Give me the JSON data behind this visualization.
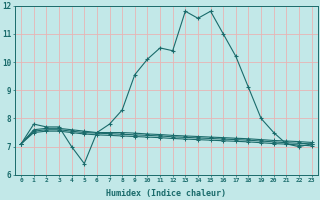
{
  "xlabel": "Humidex (Indice chaleur)",
  "bg_color": "#c2e8e8",
  "grid_color": "#e8b4b4",
  "line_color": "#1a6b6b",
  "xlim": [
    -0.5,
    23.5
  ],
  "ylim": [
    6,
    12
  ],
  "yticks": [
    6,
    7,
    8,
    9,
    10,
    11,
    12
  ],
  "xticks": [
    0,
    1,
    2,
    3,
    4,
    5,
    6,
    7,
    8,
    9,
    10,
    11,
    12,
    13,
    14,
    15,
    16,
    17,
    18,
    19,
    20,
    21,
    22,
    23
  ],
  "line1_x": [
    0,
    1,
    2,
    3,
    4,
    5,
    6,
    7,
    8,
    9,
    10,
    11,
    12,
    13,
    14,
    15,
    16,
    17,
    18,
    19,
    20,
    21,
    22,
    23
  ],
  "line1_y": [
    7.1,
    7.8,
    7.7,
    7.7,
    7.0,
    6.4,
    7.5,
    7.8,
    8.3,
    9.55,
    10.1,
    10.5,
    10.4,
    11.8,
    11.55,
    11.8,
    11.0,
    10.2,
    9.1,
    8.0,
    7.5,
    7.1,
    7.0,
    7.1
  ],
  "line2_x": [
    0,
    1,
    2,
    3,
    4,
    5,
    6,
    7,
    8,
    9,
    10,
    11,
    12,
    13,
    14,
    15,
    16,
    17,
    18,
    19,
    20,
    21,
    22,
    23
  ],
  "line2_y": [
    7.1,
    7.6,
    7.65,
    7.65,
    7.6,
    7.55,
    7.5,
    7.5,
    7.5,
    7.48,
    7.45,
    7.43,
    7.4,
    7.38,
    7.36,
    7.34,
    7.32,
    7.3,
    7.28,
    7.25,
    7.22,
    7.2,
    7.18,
    7.15
  ],
  "line3_x": [
    0,
    1,
    2,
    3,
    4,
    5,
    6,
    7,
    8,
    9,
    10,
    11,
    12,
    13,
    14,
    15,
    16,
    17,
    18,
    19,
    20,
    21,
    22,
    23
  ],
  "line3_y": [
    7.1,
    7.55,
    7.6,
    7.6,
    7.55,
    7.5,
    7.48,
    7.46,
    7.44,
    7.42,
    7.4,
    7.38,
    7.35,
    7.33,
    7.31,
    7.29,
    7.27,
    7.25,
    7.23,
    7.2,
    7.17,
    7.14,
    7.12,
    7.1
  ],
  "line4_x": [
    0,
    1,
    2,
    3,
    4,
    5,
    6,
    7,
    8,
    9,
    10,
    11,
    12,
    13,
    14,
    15,
    16,
    17,
    18,
    19,
    20,
    21,
    22,
    23
  ],
  "line4_y": [
    7.1,
    7.5,
    7.55,
    7.55,
    7.5,
    7.45,
    7.42,
    7.4,
    7.38,
    7.36,
    7.34,
    7.32,
    7.29,
    7.27,
    7.25,
    7.23,
    7.21,
    7.19,
    7.17,
    7.14,
    7.11,
    7.09,
    7.06,
    7.03
  ]
}
